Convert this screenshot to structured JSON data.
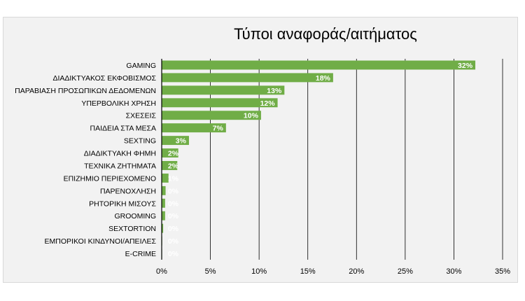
{
  "chart_data": {
    "type": "bar",
    "orientation": "horizontal",
    "title": "Τύποι αναφοράς/αιτήματος",
    "xlabel": "",
    "ylabel": "",
    "categories": [
      "GAMING",
      "ΔΙΑΔΙΚΤΥΑΚΟΣ ΕΚΦΟΒΙΣΜΟΣ",
      "ΠΑΡΑΒΙΑΣΗ ΠΡΟΣΩΠΙΚΩΝ ΔΕΔΟΜΕΝΩΝ",
      "ΥΠΕΡΒΟΛΙΚΗ ΧΡΗΣΗ",
      "ΣΧΕΣΕΙΣ",
      "ΠΑΙΔΕΙΑ ΣΤΑ ΜΕΣΑ",
      "SEXTING",
      "ΔΙΑΔΙΚΤΥΑΚΗ ΦΗΜΗ",
      "ΤΕΧΝΙΚΑ ΖΗΤΗΜΑΤΑ",
      "ΕΠΙΖΗΜΙΟ ΠΕΡΙΕΧΟΜΕΝΟ",
      "ΠΑΡΕΝΟΧΛΗΣΗ",
      "ΡΗΤΟΡΙΚΗ ΜΙΣΟΥΣ",
      "GROOMING",
      "SEXTORTION",
      "ΕΜΠΟΡΙΚΟΙ ΚΙΝΔΥΝΟΙ/ΑΠΕΙΛΕΣ",
      "E-CRIME"
    ],
    "values": [
      32.2,
      17.6,
      12.6,
      11.9,
      10.2,
      6.6,
      2.8,
      1.7,
      1.6,
      0.7,
      0.4,
      0.35,
      0.35,
      0.15,
      0.05,
      0.02
    ],
    "data_labels": [
      "32%",
      "18%",
      "13%",
      "12%",
      "10%",
      "7%",
      "3%",
      "2%",
      "2%",
      "1%",
      "0%",
      "0%",
      "0%",
      "0%",
      "0%",
      "0%"
    ],
    "xlim": [
      0,
      35
    ],
    "xticks": [
      0,
      5,
      10,
      15,
      20,
      25,
      30,
      35
    ],
    "xtick_labels": [
      "0%",
      "5%",
      "10%",
      "15%",
      "20%",
      "25%",
      "30%",
      "35%"
    ],
    "grid": "vertical",
    "bar_color": "#70ad47",
    "legend": "none"
  }
}
